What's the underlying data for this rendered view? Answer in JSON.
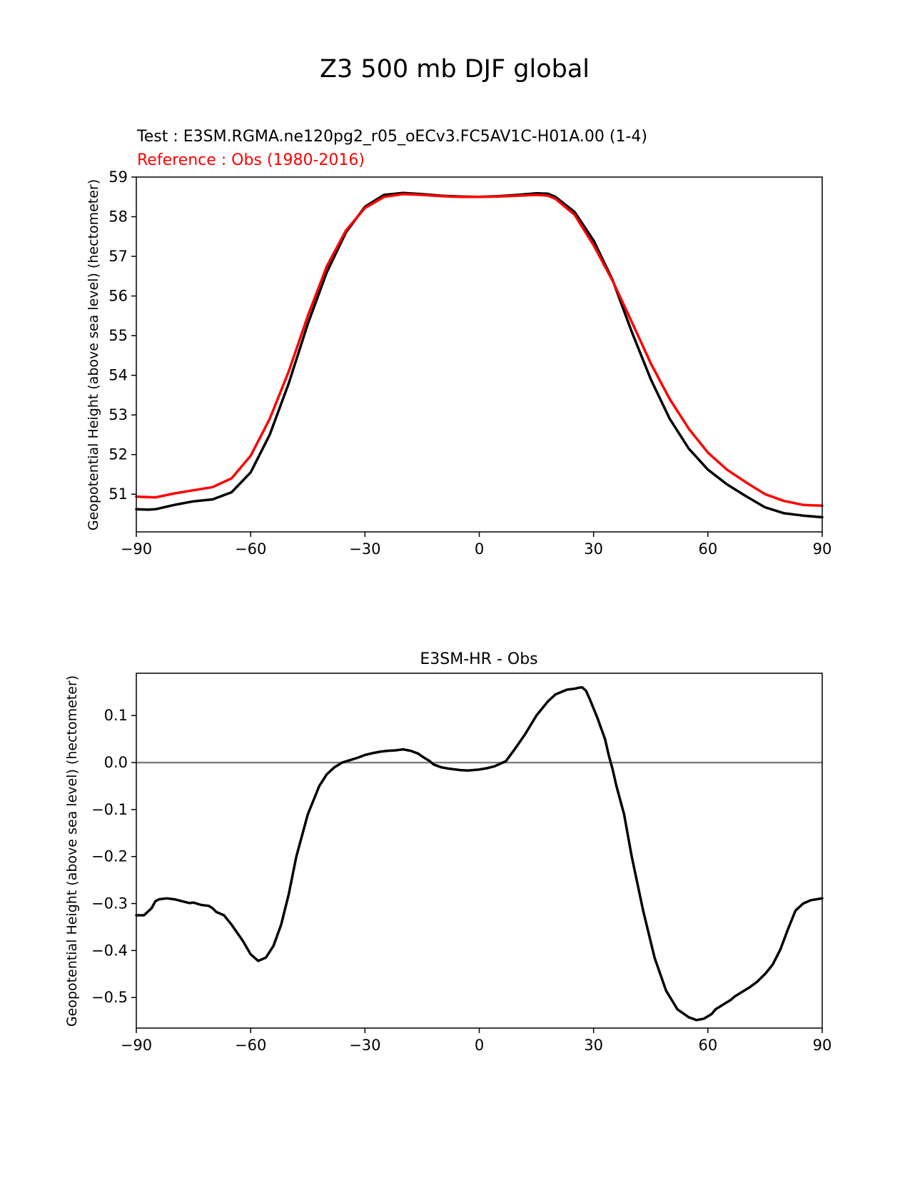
{
  "figure": {
    "suptitle": "Z3 500 mb DJF global"
  },
  "chart_data": [
    {
      "type": "line",
      "title_lines": [
        {
          "text": "Test : E3SM.RGMA.ne120pg2_r05_oECv3.FC5AV1C-H01A.00 (1-4)",
          "color": "#000000"
        },
        {
          "text": "Reference : Obs (1980-2016)",
          "color": "#ff0000"
        }
      ],
      "xlabel": "",
      "ylabel": "Geopotential Height (above sea level) (hectometer)",
      "xlim": [
        -90,
        90
      ],
      "ylim": [
        50.05,
        59.0
      ],
      "xticks": [
        -90,
        -60,
        -30,
        0,
        30,
        60,
        90
      ],
      "xtick_labels": [
        "−90",
        "−60",
        "−30",
        "0",
        "30",
        "60",
        "90"
      ],
      "yticks": [
        51,
        52,
        53,
        54,
        55,
        56,
        57,
        58,
        59
      ],
      "ytick_labels": [
        "51",
        "52",
        "53",
        "54",
        "55",
        "56",
        "57",
        "58",
        "59"
      ],
      "grid": false,
      "series": [
        {
          "color": "#000000",
          "x": [
            -90,
            -87,
            -85,
            -80,
            -75,
            -70,
            -65,
            -60,
            -55,
            -50,
            -45,
            -40,
            -35,
            -30,
            -25,
            -20,
            -15,
            -10,
            -5,
            0,
            5,
            10,
            15,
            18,
            20,
            25,
            30,
            35,
            40,
            45,
            50,
            55,
            60,
            65,
            70,
            75,
            80,
            85,
            90
          ],
          "y": [
            50.62,
            50.61,
            50.62,
            50.73,
            50.82,
            50.87,
            51.05,
            51.55,
            52.5,
            53.8,
            55.3,
            56.6,
            57.6,
            58.25,
            58.55,
            58.6,
            58.57,
            58.53,
            58.51,
            58.5,
            58.52,
            58.55,
            58.59,
            58.58,
            58.5,
            58.12,
            57.4,
            56.4,
            55.1,
            53.9,
            52.9,
            52.15,
            51.62,
            51.25,
            50.95,
            50.67,
            50.52,
            50.46,
            50.42
          ]
        },
        {
          "color": "#ff0000",
          "x": [
            -90,
            -85,
            -80,
            -75,
            -70,
            -65,
            -60,
            -55,
            -50,
            -45,
            -40,
            -35,
            -30,
            -25,
            -20,
            -15,
            -10,
            -5,
            0,
            5,
            10,
            15,
            18,
            20,
            25,
            30,
            35,
            40,
            45,
            50,
            55,
            60,
            65,
            70,
            75,
            80,
            85,
            90
          ],
          "y": [
            50.94,
            50.92,
            51.02,
            51.1,
            51.18,
            51.4,
            51.97,
            52.9,
            54.1,
            55.5,
            56.75,
            57.65,
            58.22,
            58.5,
            58.57,
            58.55,
            58.52,
            58.5,
            58.5,
            58.51,
            58.53,
            58.55,
            58.53,
            58.45,
            58.05,
            57.28,
            56.38,
            55.35,
            54.3,
            53.4,
            52.65,
            52.05,
            51.62,
            51.3,
            51.0,
            50.83,
            50.73,
            50.71
          ]
        }
      ]
    },
    {
      "type": "line",
      "title": "E3SM-HR - Obs",
      "xlabel": "",
      "ylabel": "Geopotential Height (above sea level) (hectometer)",
      "xlim": [
        -90,
        90
      ],
      "ylim": [
        -0.565,
        0.19
      ],
      "xticks": [
        -90,
        -60,
        -30,
        0,
        30,
        60,
        90
      ],
      "xtick_labels": [
        "−90",
        "−60",
        "−30",
        "0",
        "30",
        "60",
        "90"
      ],
      "yticks": [
        0.1,
        0.0,
        -0.1,
        -0.2,
        -0.3,
        -0.4,
        -0.5
      ],
      "ytick_labels": [
        "0.1",
        "0.0",
        "−0.1",
        "−0.2",
        "−0.3",
        "−0.4",
        "−0.5"
      ],
      "grid": false,
      "zero_line": true,
      "series": [
        {
          "color": "#000000",
          "x": [
            -90,
            -88,
            -86,
            -85,
            -84,
            -82,
            -80,
            -78,
            -76,
            -75,
            -73,
            -71,
            -70,
            -69,
            -67,
            -65,
            -62,
            -60,
            -58,
            -56,
            -54,
            -52,
            -50,
            -48,
            -45,
            -42,
            -40,
            -38,
            -36,
            -34,
            -32,
            -30,
            -28,
            -26,
            -24,
            -22,
            -20,
            -18,
            -17,
            -16,
            -15,
            -13,
            -12,
            -10,
            -8,
            -5,
            -3,
            0,
            2,
            4,
            7,
            9,
            12,
            15,
            18,
            20,
            23,
            25,
            26,
            27,
            28,
            29,
            31,
            33,
            34,
            35,
            36,
            38,
            40,
            43,
            46,
            49,
            52,
            55,
            57,
            59,
            61,
            62,
            64,
            66,
            67,
            69,
            71,
            73,
            75,
            77,
            79,
            81,
            83,
            85,
            87,
            90
          ],
          "y": [
            -0.325,
            -0.325,
            -0.31,
            -0.295,
            -0.291,
            -0.289,
            -0.291,
            -0.295,
            -0.299,
            -0.298,
            -0.303,
            -0.305,
            -0.31,
            -0.318,
            -0.325,
            -0.345,
            -0.38,
            -0.408,
            -0.422,
            -0.415,
            -0.39,
            -0.345,
            -0.28,
            -0.2,
            -0.11,
            -0.05,
            -0.025,
            -0.01,
            0.0,
            0.005,
            0.01,
            0.016,
            0.02,
            0.023,
            0.025,
            0.026,
            0.028,
            0.025,
            0.022,
            0.019,
            0.013,
            0.003,
            -0.004,
            -0.01,
            -0.013,
            -0.016,
            -0.017,
            -0.015,
            -0.012,
            -0.008,
            0.003,
            0.025,
            0.06,
            0.1,
            0.13,
            0.145,
            0.155,
            0.157,
            0.159,
            0.16,
            0.153,
            0.135,
            0.095,
            0.05,
            0.015,
            -0.015,
            -0.05,
            -0.11,
            -0.2,
            -0.315,
            -0.415,
            -0.485,
            -0.525,
            -0.542,
            -0.548,
            -0.545,
            -0.535,
            -0.525,
            -0.515,
            -0.505,
            -0.498,
            -0.488,
            -0.478,
            -0.466,
            -0.45,
            -0.43,
            -0.398,
            -0.355,
            -0.315,
            -0.3,
            -0.293,
            -0.289
          ]
        }
      ]
    }
  ]
}
